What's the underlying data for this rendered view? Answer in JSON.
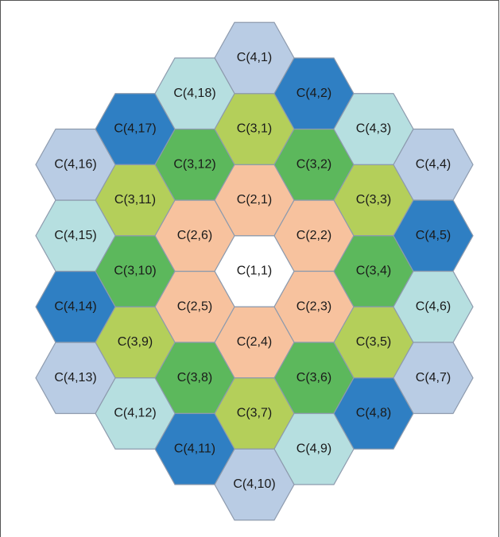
{
  "nodes": [
    {
      "label": "C(1,1)",
      "color": "#ffffff"
    },
    {
      "label": "C(2,1)",
      "color": "#f7c29e"
    },
    {
      "label": "C(2,2)",
      "color": "#f7c29e"
    },
    {
      "label": "C(2,3)",
      "color": "#f7c29e"
    },
    {
      "label": "C(2,4)",
      "color": "#f7c29e"
    },
    {
      "label": "C(2,5)",
      "color": "#f7c29e"
    },
    {
      "label": "C(2,6)",
      "color": "#f7c29e"
    },
    {
      "label": "C(3,1)",
      "color": "#b4cf5a"
    },
    {
      "label": "C(3,2)",
      "color": "#5cb85c"
    },
    {
      "label": "C(3,3)",
      "color": "#b4cf5a"
    },
    {
      "label": "C(3,4)",
      "color": "#5cb85c"
    },
    {
      "label": "C(3,5)",
      "color": "#b4cf5a"
    },
    {
      "label": "C(3,6)",
      "color": "#5cb85c"
    },
    {
      "label": "C(3,7)",
      "color": "#b4cf5a"
    },
    {
      "label": "C(3,8)",
      "color": "#5cb85c"
    },
    {
      "label": "C(3,9)",
      "color": "#b4cf5a"
    },
    {
      "label": "C(3,10)",
      "color": "#5cb85c"
    },
    {
      "label": "C(3,11)",
      "color": "#b4cf5a"
    },
    {
      "label": "C(3,12)",
      "color": "#5cb85c"
    },
    {
      "label": "C(4,1)",
      "color": "#b9cce4"
    },
    {
      "label": "C(4,2)",
      "color": "#2f7fc3"
    },
    {
      "label": "C(4,3)",
      "color": "#b6dfe0"
    },
    {
      "label": "C(4,4)",
      "color": "#b9cce4"
    },
    {
      "label": "C(4,5)",
      "color": "#2f7fc3"
    },
    {
      "label": "C(4,6)",
      "color": "#b6dfe0"
    },
    {
      "label": "C(4,7)",
      "color": "#b9cce4"
    },
    {
      "label": "C(4,8)",
      "color": "#2f7fc3"
    },
    {
      "label": "C(4,9)",
      "color": "#b6dfe0"
    },
    {
      "label": "C(4,10)",
      "color": "#b9cce4"
    },
    {
      "label": "C(4,11)",
      "color": "#2f7fc3"
    },
    {
      "label": "C(4,12)",
      "color": "#b6dfe0"
    },
    {
      "label": "C(4,13)",
      "color": "#b9cce4"
    },
    {
      "label": "C(4,14)",
      "color": "#2f7fc3"
    },
    {
      "label": "C(4,15)",
      "color": "#b6dfe0"
    },
    {
      "label": "C(4,16)",
      "color": "#b9cce4"
    },
    {
      "label": "C(4,17)",
      "color": "#2f7fc3"
    },
    {
      "label": "C(4,18)",
      "color": "#b6dfe0"
    }
  ]
}
